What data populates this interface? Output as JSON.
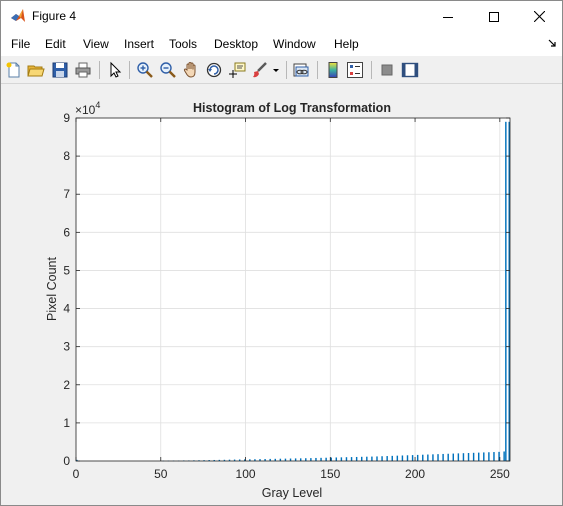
{
  "window": {
    "title": "Figure 4",
    "icon": "matlab-icon",
    "controls": [
      "minimize-icon",
      "maximize-icon",
      "close-icon"
    ]
  },
  "menubar": {
    "items": [
      "File",
      "Edit",
      "View",
      "Insert",
      "Tools",
      "Desktop",
      "Window",
      "Help"
    ]
  },
  "toolbar": {
    "icons": [
      "new-figure-icon",
      "open-file-icon",
      "save-icon",
      "print-icon",
      "pointer-icon",
      "zoom-in-icon",
      "zoom-out-icon",
      "pan-icon",
      "rotate-3d-icon",
      "data-cursor-icon",
      "brush-icon",
      "brush-dropdown-icon",
      "link-plot-icon",
      "insert-colorbar-icon",
      "insert-legend-icon",
      "hide-plot-tools-icon",
      "show-plot-tools-icon"
    ]
  },
  "chart_data": {
    "type": "bar",
    "title": "Histogram of Log Transformation",
    "xlabel": "Gray Level",
    "ylabel": "Pixel Count",
    "y_exponent_label": "×10",
    "y_exponent_power": "4",
    "xlim": [
      0,
      256
    ],
    "ylim": [
      0,
      90000
    ],
    "xticks": [
      "0",
      "50",
      "100",
      "150",
      "200",
      "250"
    ],
    "xtick_values": [
      0,
      50,
      100,
      150,
      200,
      250
    ],
    "yticks": [
      "0",
      "1",
      "2",
      "3",
      "4",
      "5",
      "6",
      "7",
      "8",
      "9"
    ],
    "ytick_values": [
      0,
      10000,
      20000,
      30000,
      40000,
      50000,
      60000,
      70000,
      80000,
      90000
    ],
    "grid": true,
    "bar_color": "#0072bd",
    "bins": [
      {
        "x": 0,
        "y": 300
      },
      {
        "x": 51,
        "y": 100
      },
      {
        "x": 54,
        "y": 100
      },
      {
        "x": 57,
        "y": 120
      },
      {
        "x": 60,
        "y": 120
      },
      {
        "x": 63,
        "y": 150
      },
      {
        "x": 66,
        "y": 150
      },
      {
        "x": 69,
        "y": 180
      },
      {
        "x": 72,
        "y": 200
      },
      {
        "x": 75,
        "y": 220
      },
      {
        "x": 78,
        "y": 250
      },
      {
        "x": 81,
        "y": 270
      },
      {
        "x": 84,
        "y": 300
      },
      {
        "x": 87,
        "y": 320
      },
      {
        "x": 90,
        "y": 350
      },
      {
        "x": 93,
        "y": 380
      },
      {
        "x": 96,
        "y": 400
      },
      {
        "x": 99,
        "y": 430
      },
      {
        "x": 102,
        "y": 450
      },
      {
        "x": 105,
        "y": 470
      },
      {
        "x": 108,
        "y": 500
      },
      {
        "x": 111,
        "y": 520
      },
      {
        "x": 114,
        "y": 550
      },
      {
        "x": 117,
        "y": 570
      },
      {
        "x": 120,
        "y": 600
      },
      {
        "x": 123,
        "y": 620
      },
      {
        "x": 126,
        "y": 650
      },
      {
        "x": 129,
        "y": 680
      },
      {
        "x": 132,
        "y": 700
      },
      {
        "x": 135,
        "y": 730
      },
      {
        "x": 138,
        "y": 760
      },
      {
        "x": 141,
        "y": 800
      },
      {
        "x": 144,
        "y": 830
      },
      {
        "x": 147,
        "y": 860
      },
      {
        "x": 150,
        "y": 900
      },
      {
        "x": 153,
        "y": 930
      },
      {
        "x": 156,
        "y": 960
      },
      {
        "x": 159,
        "y": 1000
      },
      {
        "x": 162,
        "y": 1030
      },
      {
        "x": 165,
        "y": 1060
      },
      {
        "x": 168,
        "y": 1100
      },
      {
        "x": 171,
        "y": 1130
      },
      {
        "x": 174,
        "y": 1160
      },
      {
        "x": 177,
        "y": 1200
      },
      {
        "x": 180,
        "y": 1250
      },
      {
        "x": 183,
        "y": 1300
      },
      {
        "x": 186,
        "y": 1350
      },
      {
        "x": 189,
        "y": 1400
      },
      {
        "x": 192,
        "y": 1450
      },
      {
        "x": 195,
        "y": 1500
      },
      {
        "x": 198,
        "y": 1550
      },
      {
        "x": 201,
        "y": 1600
      },
      {
        "x": 204,
        "y": 1650
      },
      {
        "x": 207,
        "y": 1700
      },
      {
        "x": 210,
        "y": 1750
      },
      {
        "x": 213,
        "y": 1800
      },
      {
        "x": 216,
        "y": 1850
      },
      {
        "x": 219,
        "y": 1900
      },
      {
        "x": 222,
        "y": 1950
      },
      {
        "x": 225,
        "y": 2000
      },
      {
        "x": 228,
        "y": 2050
      },
      {
        "x": 231,
        "y": 2100
      },
      {
        "x": 234,
        "y": 2150
      },
      {
        "x": 237,
        "y": 2200
      },
      {
        "x": 240,
        "y": 2250
      },
      {
        "x": 243,
        "y": 2300
      },
      {
        "x": 246,
        "y": 2350
      },
      {
        "x": 249,
        "y": 2400
      },
      {
        "x": 252,
        "y": 2500
      },
      {
        "x": 253,
        "y": 89000
      },
      {
        "x": 255,
        "y": 89000
      }
    ]
  }
}
